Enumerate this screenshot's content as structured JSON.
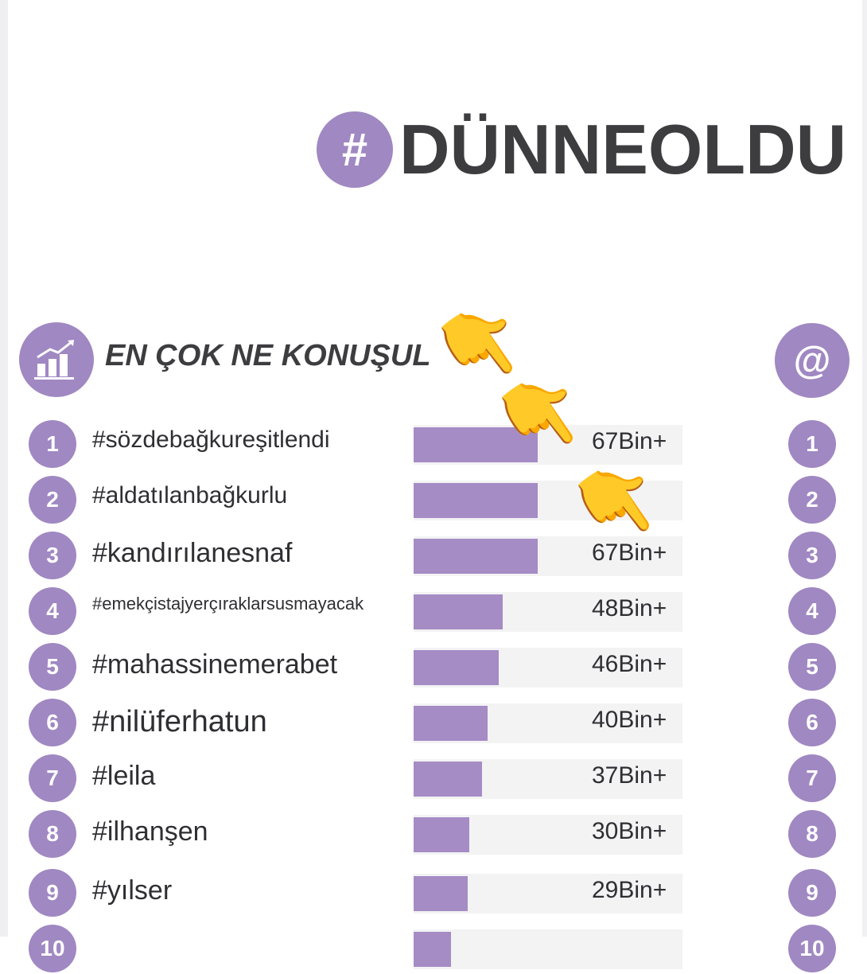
{
  "header": {
    "hash": "#",
    "brand": "DÜNNEOLDU"
  },
  "section": {
    "title": "EN ÇOK NE KONUŞUL",
    "at": "@",
    "icon": "chart-growth-icon"
  },
  "colors": {
    "accent": "#a088c2",
    "bar": "#a58cc5",
    "text": "#3d3d40"
  },
  "chart_data": {
    "type": "bar",
    "categories": [
      "#sözdebağkureşitlendi",
      "#aldatılanbağkurlu",
      "#kandırılanesnaf",
      "#emekçistajyerçıraklarsusmayacak",
      "#mahassinemerabet",
      "#nilüferhatun",
      "#leila",
      "#ilhanşen",
      "#yılser",
      ""
    ],
    "ranks": [
      "1",
      "2",
      "3",
      "4",
      "5",
      "6",
      "7",
      "8",
      "9",
      "10"
    ],
    "value_labels": [
      "67Bin+",
      "",
      "67Bin+",
      "48Bin+",
      "46Bin+",
      "40Bin+",
      "37Bin+",
      "30Bin+",
      "29Bin+",
      ""
    ],
    "values": [
      67,
      67,
      67,
      48,
      46,
      40,
      37,
      30,
      29,
      20
    ],
    "unit": "Bin",
    "max": 145
  },
  "decorations": {
    "pointing_emoji": "👇"
  }
}
